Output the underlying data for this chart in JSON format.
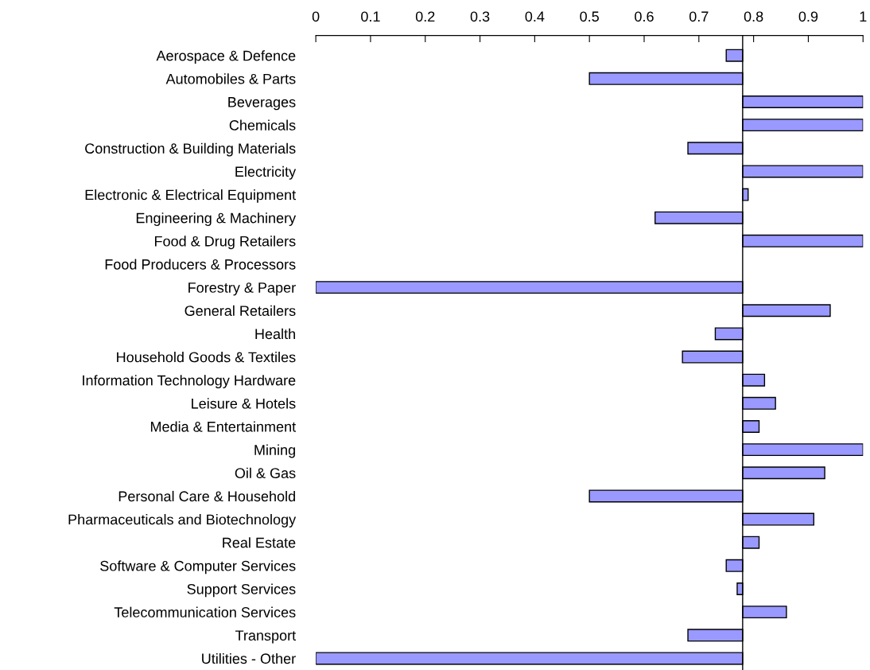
{
  "chart_data": {
    "type": "bar",
    "orientation": "horizontal",
    "categories": [
      "Aerospace & Defence",
      "Automobiles & Parts",
      "Beverages",
      "Chemicals",
      "Construction & Building Materials",
      "Electricity",
      "Electronic & Electrical Equipment",
      "Engineering & Machinery",
      "Food & Drug Retailers",
      "Food Producers & Processors",
      "Forestry & Paper",
      "General Retailers",
      "Health",
      "Household Goods & Textiles",
      "Information Technology Hardware",
      "Leisure & Hotels",
      "Media & Entertainment",
      "Mining",
      "Oil & Gas",
      "Personal Care & Household",
      "Pharmaceuticals and Biotechnology",
      "Real Estate",
      "Software & Computer Services",
      "Support Services",
      "Telecommunication Services",
      "Transport",
      "Utilities - Other"
    ],
    "values": [
      -0.03,
      -0.28,
      0.22,
      0.22,
      -0.1,
      0.22,
      0.01,
      -0.16,
      0.22,
      null,
      -0.78,
      0.16,
      -0.05,
      -0.11,
      0.04,
      0.06,
      0.03,
      0.22,
      0.15,
      -0.28,
      0.13,
      0.03,
      -0.03,
      -0.01,
      0.08,
      -0.1,
      -0.78
    ],
    "base": [
      0.78,
      0.78,
      0.78,
      0.78,
      0.78,
      0.78,
      0.78,
      0.78,
      0.78,
      null,
      0.78,
      0.78,
      0.78,
      0.78,
      0.78,
      0.78,
      0.78,
      0.78,
      0.78,
      0.78,
      0.78,
      0.78,
      0.78,
      0.78,
      0.78,
      0.78,
      0.78
    ],
    "color": "#9999ff",
    "xlim": [
      0,
      1
    ],
    "xticks": [
      0,
      0.1,
      0.2,
      0.3,
      0.4,
      0.5,
      0.6,
      0.7,
      0.8,
      0.9,
      1
    ],
    "ref_lines": [
      {
        "axis": "x",
        "value": 0.78,
        "label": null,
        "color": "#000000"
      }
    ],
    "grid": false
  }
}
